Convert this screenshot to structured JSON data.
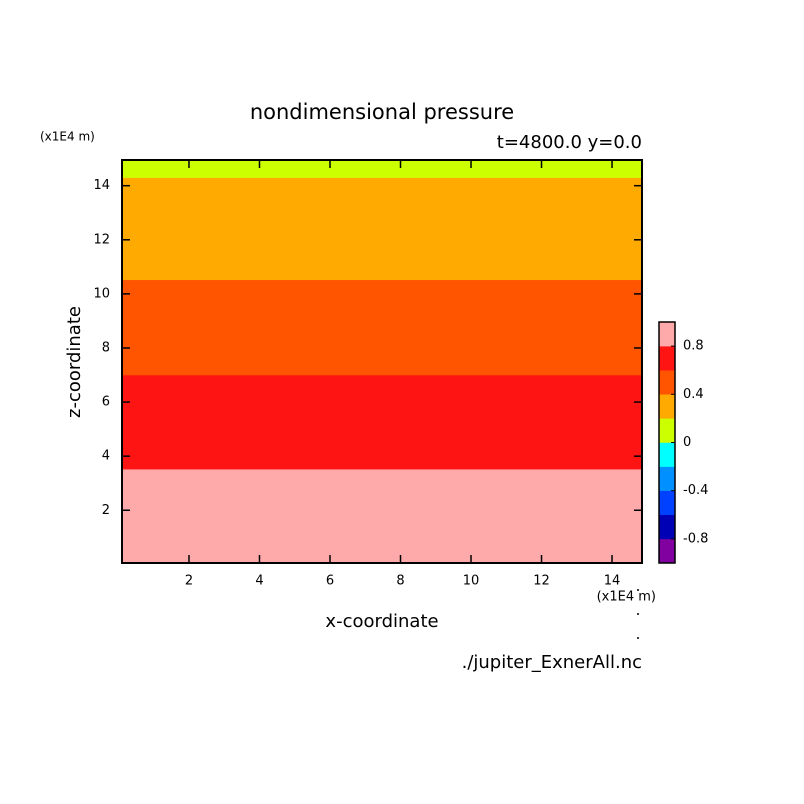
{
  "chart_data": {
    "type": "contour-bands",
    "title": "nondimensional pressure",
    "subtitle": "t=4800.0 y=0.0",
    "x_label": "x-coordinate",
    "y_label": "z-coordinate",
    "x_unit": "(x1E4 m)",
    "y_unit": "(x1E4 m)",
    "footer": "./jupiter_ExnerAll.nc",
    "xlim": [
      0.1,
      14.85
    ],
    "ylim": [
      0.05,
      14.95
    ],
    "xticks": [
      2,
      4,
      6,
      8,
      10,
      12,
      14
    ],
    "yticks": [
      2,
      4,
      6,
      8,
      10,
      12,
      14
    ],
    "band_edges": [
      0.05,
      3.52,
      7.0,
      10.52,
      14.3,
      14.95
    ],
    "band_colors": [
      "#ffaaaa",
      "#ff1414",
      "#ff5500",
      "#ffaa00",
      "#ccff00"
    ],
    "colorbar_levels": [
      -1,
      -0.8,
      -0.6,
      -0.4,
      -0.2,
      0,
      0.2,
      0.4,
      0.6,
      0.8,
      1
    ],
    "colorbar_colors": [
      "#8000a0",
      "#0000b4",
      "#0040ff",
      "#0090ff",
      "#00ffff",
      "#ccff00",
      "#ffaa00",
      "#ff5500",
      "#ff1414",
      "#ffaaaa"
    ],
    "colorbar_ticks": [
      -0.8,
      -0.4,
      0,
      0.4,
      0.8
    ]
  }
}
